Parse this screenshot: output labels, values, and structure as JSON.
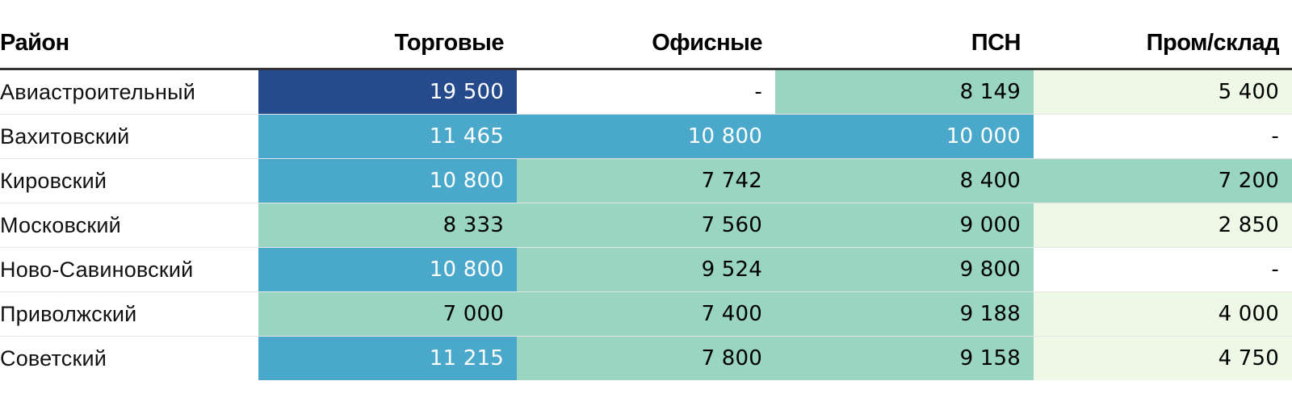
{
  "chart_data": {
    "type": "table",
    "columns": [
      "Район",
      "Торговые",
      "Офисные",
      "ПСН",
      "Пром/склад"
    ],
    "rows": [
      {
        "district": "Авиастроительный",
        "values": [
          "19 500",
          "-",
          "8 149",
          "5 400"
        ],
        "numeric": [
          19500,
          null,
          8149,
          5400
        ]
      },
      {
        "district": "Вахитовский",
        "values": [
          "11 465",
          "10 800",
          "10 000",
          "-"
        ],
        "numeric": [
          11465,
          10800,
          10000,
          null
        ]
      },
      {
        "district": "Кировский",
        "values": [
          "10 800",
          "7 742",
          "8 400",
          "7 200"
        ],
        "numeric": [
          10800,
          7742,
          8400,
          7200
        ]
      },
      {
        "district": "Московский",
        "values": [
          "8 333",
          "7 560",
          "9 000",
          "2 850"
        ],
        "numeric": [
          8333,
          7560,
          9000,
          2850
        ]
      },
      {
        "district": "Ново-Савиновский",
        "values": [
          "10 800",
          "9 524",
          "9 800",
          "-"
        ],
        "numeric": [
          10800,
          9524,
          9800,
          null
        ]
      },
      {
        "district": "Приволжский",
        "values": [
          "7 000",
          "7 400",
          "9 188",
          "4 000"
        ],
        "numeric": [
          7000,
          7400,
          9188,
          4000
        ]
      },
      {
        "district": "Советский",
        "values": [
          "11 215",
          "7 800",
          "9 158",
          "4 750"
        ],
        "numeric": [
          11215,
          7800,
          9158,
          4750
        ]
      }
    ],
    "color_scale": [
      {
        "min": 0,
        "max": 6000,
        "background": "#eef8e6",
        "text": "#000000"
      },
      {
        "min": 6000,
        "max": 10000,
        "background": "#99d5c0",
        "text": "#000000"
      },
      {
        "min": 10000,
        "max": 15000,
        "background": "#4aa8cb",
        "text": "#ffffff"
      },
      {
        "min": 15000,
        "max": 25000,
        "background": "#254b8c",
        "text": "#ffffff"
      }
    ],
    "empty_cell": {
      "background": "#ffffff",
      "text": "#000000"
    }
  }
}
